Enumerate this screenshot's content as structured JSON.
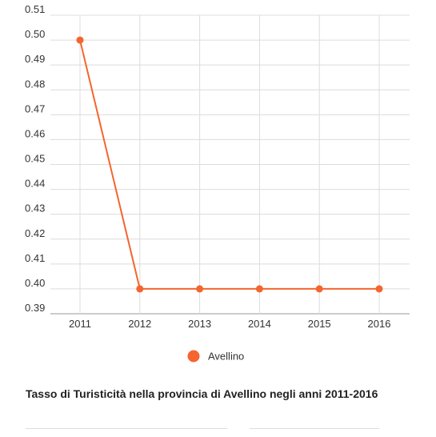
{
  "chart_data": {
    "type": "line",
    "title": "Tasso di Turisticità nella provincia di Avellino negli anni 2011-2016",
    "xlabel": "",
    "ylabel": "",
    "x": [
      "2011",
      "2012",
      "2013",
      "2014",
      "2015",
      "2016"
    ],
    "y_ticks": [
      "0.39",
      "0.40",
      "0.41",
      "0.42",
      "0.43",
      "0.44",
      "0.45",
      "0.46",
      "0.47",
      "0.48",
      "0.49",
      "0.50",
      "0.51"
    ],
    "ylim": [
      0.39,
      0.51
    ],
    "grid": true,
    "legend_position": "bottom",
    "series": [
      {
        "name": "Avellino",
        "color": "#f4652f",
        "values": [
          0.5,
          0.4,
          0.4,
          0.4,
          0.4,
          0.4
        ]
      }
    ]
  }
}
